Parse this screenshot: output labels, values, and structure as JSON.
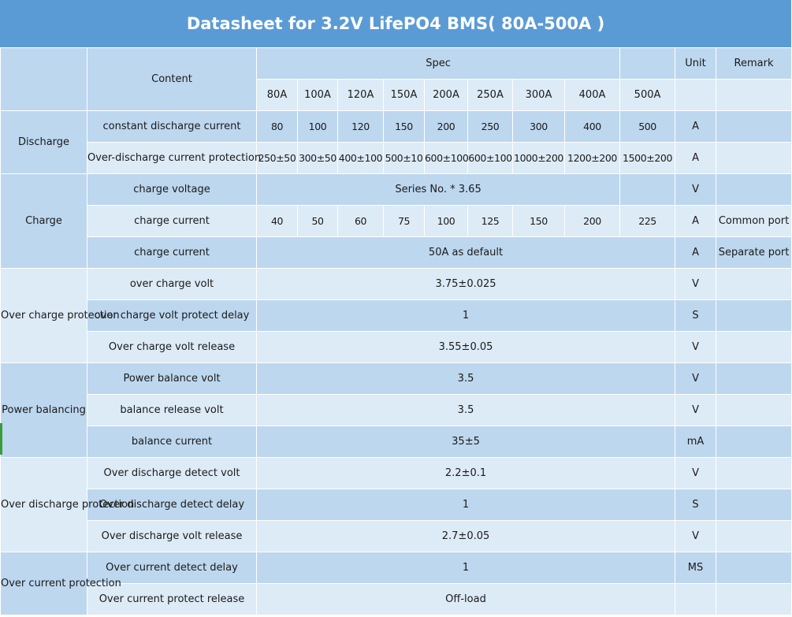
{
  "title": "Datasheet for 3.2V LifePO4 BMS( 80A-500A )",
  "header": {
    "content": "Content",
    "spec": "Spec",
    "unit": "Unit",
    "remark": "Remark",
    "models": [
      "80A",
      "100A",
      "120A",
      "150A",
      "200A",
      "250A",
      "300A",
      "400A",
      "500A"
    ]
  },
  "discharge": {
    "category": "Discharge",
    "const_label": "constant discharge current",
    "const_values": [
      "80",
      "100",
      "120",
      "150",
      "200",
      "250",
      "300",
      "400",
      "500"
    ],
    "const_unit": "A",
    "odc_label": "Over-discharge current protection",
    "odc_values": [
      "250±50",
      "300±50",
      "400±100",
      "500±10",
      "600±100",
      "600±100",
      "1000±200",
      "1200±200",
      "1500±200"
    ],
    "odc_unit": "A"
  },
  "charge": {
    "category": "Charge",
    "volt_label": "charge voltage",
    "volt_value": "Series No. * 3.65",
    "volt_unit": "V",
    "curr_label": "charge current",
    "curr_values": [
      "40",
      "50",
      "60",
      "75",
      "100",
      "125",
      "150",
      "200",
      "225"
    ],
    "curr_unit": "A",
    "curr_remark": "Common port",
    "curr2_label": "charge current",
    "curr2_value": "50A as default",
    "curr2_unit": "A",
    "curr2_remark": "Separate port"
  },
  "overcharge": {
    "category": "Over charge protection",
    "rows": [
      {
        "label": "over charge volt",
        "value": "3.75±0.025",
        "unit": "V"
      },
      {
        "label": "over charge volt protect delay",
        "value": "1",
        "unit": "S"
      },
      {
        "label": "Over charge volt release",
        "value": "3.55±0.05",
        "unit": "V"
      }
    ]
  },
  "balancing": {
    "category": "Power balancing",
    "rows": [
      {
        "label": "Power balance volt",
        "value": "3.5",
        "unit": "V"
      },
      {
        "label": "balance release volt",
        "value": "3.5",
        "unit": "V"
      },
      {
        "label": "balance current",
        "value": "35±5",
        "unit": "mA"
      }
    ]
  },
  "overdischarge": {
    "category": "Over discharge protection",
    "rows": [
      {
        "label": "Over discharge detect  volt",
        "value": "2.2±0.1",
        "unit": "V"
      },
      {
        "label": "Over discharge detect delay",
        "value": "1",
        "unit": "S"
      },
      {
        "label": "Over discharge volt release",
        "value": "2.7±0.05",
        "unit": "V"
      }
    ]
  },
  "overcurrent": {
    "category": "Over  current protection",
    "rows": [
      {
        "label": "Over current detect delay",
        "value": "1",
        "unit": "MS"
      },
      {
        "label": "Over current protect release",
        "value": "Off-load",
        "unit": ""
      }
    ]
  }
}
